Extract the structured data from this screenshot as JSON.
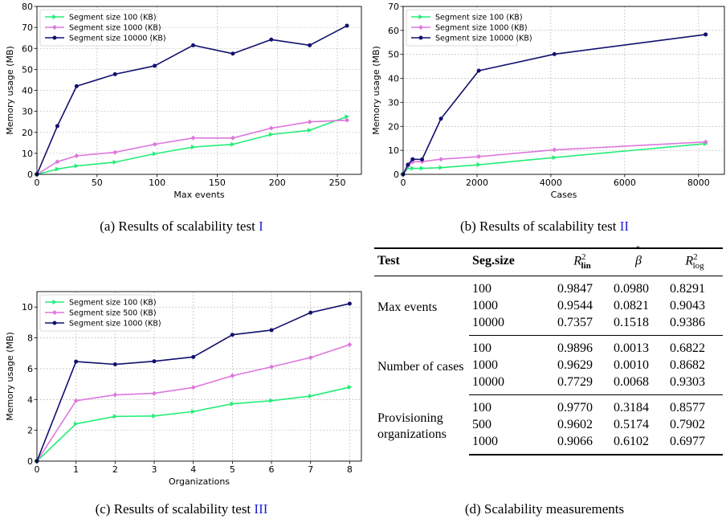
{
  "chart_data": [
    {
      "type": "line",
      "xlabel": "Max events",
      "ylabel": "Memory usage (MB)",
      "xlim": [
        0,
        270
      ],
      "ylim": [
        0,
        80
      ],
      "xticks": [
        0,
        50,
        100,
        150,
        200,
        250
      ],
      "yticks": [
        0,
        10,
        20,
        30,
        40,
        50,
        60,
        70,
        80
      ],
      "grid": true,
      "legend": "top-left",
      "series": [
        {
          "name": "Segment size 100 (KB)",
          "color": "#22ee77",
          "marker": "triangle-right",
          "x": [
            0,
            17,
            33,
            65,
            98,
            130,
            163,
            195,
            227,
            258
          ],
          "y": [
            0,
            2.5,
            4,
            5.8,
            9.8,
            13,
            14.3,
            19,
            21,
            27.5
          ]
        },
        {
          "name": "Segment size 1000 (KB)",
          "color": "#dd77dd",
          "marker": "diamond",
          "x": [
            0,
            17,
            33,
            65,
            98,
            130,
            163,
            195,
            227,
            258
          ],
          "y": [
            0,
            6,
            8.8,
            10.5,
            14.3,
            17.3,
            17.3,
            22,
            25,
            25.8
          ]
        },
        {
          "name": "Segment size 10000 (KB)",
          "color": "#10106e",
          "marker": "circle",
          "x": [
            0,
            17,
            33,
            65,
            98,
            130,
            163,
            195,
            227,
            258
          ],
          "y": [
            0,
            23,
            42,
            47.7,
            51.7,
            61.5,
            57.5,
            64.2,
            61.5,
            70.8
          ]
        }
      ]
    },
    {
      "type": "line",
      "xlabel": "Cases",
      "ylabel": "Memory usage (MB)",
      "xlim": [
        0,
        8700
      ],
      "ylim": [
        0,
        70
      ],
      "xticks": [
        0,
        2000,
        4000,
        6000,
        8000
      ],
      "yticks": [
        0,
        10,
        20,
        30,
        40,
        50,
        60,
        70
      ],
      "grid": true,
      "legend": "top-left",
      "series": [
        {
          "name": "Segment size 100 (KB)",
          "color": "#22ee77",
          "marker": "triangle-right",
          "x": [
            0,
            128,
            256,
            512,
            1024,
            2048,
            4096,
            8192
          ],
          "y": [
            0,
            2.5,
            2.5,
            2.5,
            2.8,
            4,
            7,
            12.8
          ]
        },
        {
          "name": "Segment size 1000 (KB)",
          "color": "#dd77dd",
          "marker": "diamond",
          "x": [
            0,
            128,
            256,
            512,
            1024,
            2048,
            4096,
            8192
          ],
          "y": [
            0,
            3.5,
            5.2,
            5.3,
            6.3,
            7.4,
            10.2,
            13.5
          ]
        },
        {
          "name": "Segment size 10000 (KB)",
          "color": "#10106e",
          "marker": "circle",
          "x": [
            0,
            128,
            256,
            512,
            1024,
            2048,
            4096,
            8192
          ],
          "y": [
            0,
            4,
            6.3,
            6.2,
            23.2,
            43.2,
            50.1,
            58.3
          ]
        }
      ]
    },
    {
      "type": "line",
      "xlabel": "Organizations",
      "ylabel": "Memory usage (MB)",
      "xlim": [
        0,
        8.3
      ],
      "ylim": [
        0,
        11
      ],
      "xticks": [
        0,
        1,
        2,
        3,
        4,
        5,
        6,
        7,
        8
      ],
      "yticks": [
        0,
        2,
        4,
        6,
        8,
        10
      ],
      "grid": true,
      "legend": "top-left",
      "series": [
        {
          "name": "Segment size 100 (KB)",
          "color": "#22ee77",
          "marker": "triangle-right",
          "x": [
            0,
            1,
            2,
            3,
            4,
            5,
            6,
            7,
            8
          ],
          "y": [
            0,
            2.42,
            2.9,
            2.93,
            3.22,
            3.72,
            3.92,
            4.22,
            4.8
          ]
        },
        {
          "name": "Segment size 500 (KB)",
          "color": "#dd77dd",
          "marker": "diamond",
          "x": [
            0,
            1,
            2,
            3,
            4,
            5,
            6,
            7,
            8
          ],
          "y": [
            0,
            3.92,
            4.3,
            4.4,
            4.78,
            5.54,
            6.12,
            6.72,
            7.56
          ]
        },
        {
          "name": "Segment size 1000 (KB)",
          "color": "#10106e",
          "marker": "circle",
          "x": [
            0,
            1,
            2,
            3,
            4,
            5,
            6,
            7,
            8
          ],
          "y": [
            0,
            6.46,
            6.28,
            6.48,
            6.76,
            8.2,
            8.5,
            9.64,
            10.22
          ]
        }
      ]
    }
  ],
  "captions": {
    "a": {
      "text": "(a) Results of scalability test ",
      "ref": "I"
    },
    "b": {
      "text": "(b) Results of scalability test ",
      "ref": "II"
    },
    "c": {
      "text": "(c) Results of scalability test ",
      "ref": "III"
    },
    "d": {
      "text": "(d) Scalability measurements"
    }
  },
  "table": {
    "headers": {
      "test": "Test",
      "seg": "Seg.size",
      "rlin": "R",
      "rlin_sub": "lin",
      "beta": "β",
      "rlog": "R",
      "rlog_sub": "log",
      "sup": "2"
    },
    "groups": [
      {
        "test": "Max events",
        "rows": [
          {
            "seg": "100",
            "rlin": "0.9847",
            "beta": "0.0980",
            "rlog": "0.8291"
          },
          {
            "seg": "1000",
            "rlin": "0.9544",
            "beta": "0.0821",
            "rlog": "0.9043"
          },
          {
            "seg": "10000",
            "rlin": "0.7357",
            "beta": "0.1518",
            "rlog": "0.9386"
          }
        ]
      },
      {
        "test": "Number of cases",
        "rows": [
          {
            "seg": "100",
            "rlin": "0.9896",
            "beta": "0.0013",
            "rlog": "0.6822"
          },
          {
            "seg": "1000",
            "rlin": "0.9629",
            "beta": "0.0010",
            "rlog": "0.8682"
          },
          {
            "seg": "10000",
            "rlin": "0.7729",
            "beta": "0.0068",
            "rlog": "0.9303"
          }
        ]
      },
      {
        "test": "Provisioning organizations",
        "rows": [
          {
            "seg": "100",
            "rlin": "0.9770",
            "beta": "0.3184",
            "rlog": "0.8577"
          },
          {
            "seg": "500",
            "rlin": "0.9602",
            "beta": "0.5174",
            "rlog": "0.7902"
          },
          {
            "seg": "1000",
            "rlin": "0.9066",
            "beta": "0.6102",
            "rlog": "0.6977"
          }
        ]
      }
    ]
  }
}
